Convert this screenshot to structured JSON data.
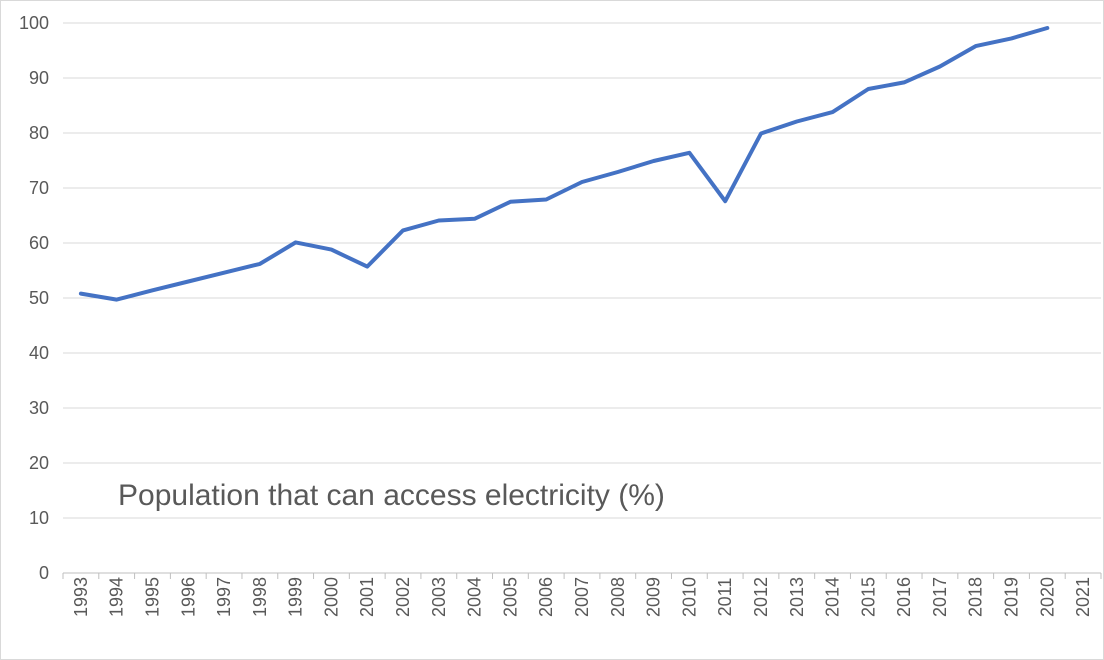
{
  "colors": {
    "series": "#4472c4",
    "text": "#595959",
    "grid": "#d9d9d9"
  },
  "chart_data": {
    "type": "line",
    "title": "Population that can access electricity (%)",
    "xlabel": "",
    "ylabel": "",
    "ylim": [
      0,
      100
    ],
    "yticks": [
      0,
      10,
      20,
      30,
      40,
      50,
      60,
      70,
      80,
      90,
      100
    ],
    "grid": true,
    "legend": "none",
    "categories": [
      "1993",
      "1994",
      "1995",
      "1996",
      "1997",
      "1998",
      "1999",
      "2000",
      "2001",
      "2002",
      "2003",
      "2004",
      "2005",
      "2006",
      "2007",
      "2008",
      "2009",
      "2010",
      "2011",
      "2012",
      "2013",
      "2014",
      "2015",
      "2016",
      "2017",
      "2018",
      "2019",
      "2020",
      "2021"
    ],
    "series": [
      {
        "values": [
          50.8,
          49.7,
          51.4,
          53.0,
          54.6,
          56.2,
          60.1,
          58.8,
          55.7,
          62.3,
          64.1,
          64.4,
          67.5,
          67.9,
          71.1,
          72.9,
          74.9,
          76.4,
          67.6,
          79.9,
          82.1,
          83.8,
          88.0,
          89.2,
          92.1,
          95.8,
          97.2,
          99.1,
          null
        ]
      }
    ]
  }
}
